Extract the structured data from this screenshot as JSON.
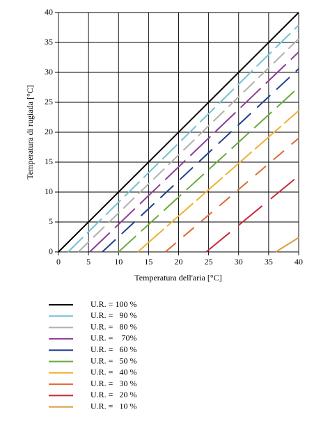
{
  "chart_data": {
    "type": "line",
    "x_label": "Temperatura dell'aria [°C]",
    "y_label": "Temperatura di rugiada [°C]",
    "xlim": [
      0,
      40
    ],
    "xticks": [
      0,
      5,
      10,
      15,
      20,
      25,
      30,
      35,
      40
    ],
    "ylim": [
      0,
      40
    ],
    "yticks": [
      0,
      5,
      10,
      15,
      20,
      25,
      30,
      35,
      40
    ],
    "grid": true,
    "series": [
      {
        "name": "U.R. = 100 %",
        "color": "#000000",
        "x": [
          0,
          40
        ],
        "values": [
          0,
          40
        ]
      },
      {
        "name": "U.R. =   90 %",
        "color": "#72c2d2",
        "x": [
          1.6,
          40
        ],
        "values": [
          0,
          37.9
        ]
      },
      {
        "name": "U.R. =   80 %",
        "color": "#b0b0b0",
        "x": [
          3.3,
          40
        ],
        "values": [
          0,
          35.6
        ]
      },
      {
        "name": "U.R. =    70%",
        "color": "#8e3a9a",
        "x": [
          5.2,
          40
        ],
        "values": [
          0,
          33.4
        ]
      },
      {
        "name": "U.R. =   60 %",
        "color": "#1f3f8f",
        "x": [
          7.3,
          40
        ],
        "values": [
          0,
          30.6
        ]
      },
      {
        "name": "U.R. =   50 %",
        "color": "#6aaa3a",
        "x": [
          10,
          40
        ],
        "values": [
          0,
          27.5
        ]
      },
      {
        "name": "U.R. =   40 %",
        "color": "#f0b030",
        "x": [
          13.2,
          40
        ],
        "values": [
          0,
          23.6
        ]
      },
      {
        "name": "U.R. =   30 %",
        "color": "#e06a30",
        "x": [
          17.8,
          40
        ],
        "values": [
          0,
          19
        ]
      },
      {
        "name": "U.R. =   20 %",
        "color": "#c8283a",
        "x": [
          24.6,
          40
        ],
        "values": [
          0,
          12.7
        ]
      },
      {
        "name": "U.R. =   10 %",
        "color": "#d8a040",
        "x": [
          36.2,
          40
        ],
        "values": [
          0,
          2.4
        ]
      }
    ]
  }
}
